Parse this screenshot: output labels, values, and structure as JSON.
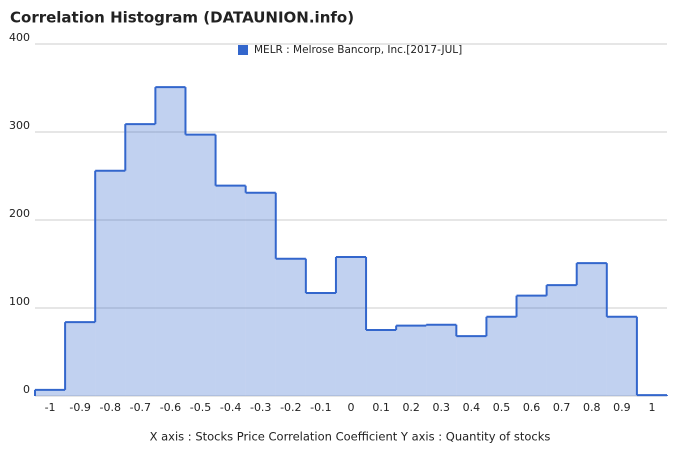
{
  "chart_data": {
    "type": "step-area",
    "title": "Correlation Histogram (DATAUNION.info)",
    "xlabel": "X axis : Stocks Price Correlation Coefficient  Y axis : Quantity of stocks",
    "x": [
      -1,
      -0.9,
      -0.8,
      -0.7,
      -0.6,
      -0.5,
      -0.4,
      -0.3,
      -0.2,
      -0.1,
      0,
      0.1,
      0.2,
      0.3,
      0.4,
      0.5,
      0.6,
      0.7,
      0.8,
      0.9,
      1
    ],
    "bin_width": 0.1,
    "series": [
      {
        "name": "MELR : Melrose Bancorp, Inc.[2017-JUL]",
        "color": "#3366cc",
        "values": [
          7,
          84,
          256,
          309,
          351,
          297,
          239,
          231,
          156,
          117,
          158,
          75,
          80,
          81,
          68,
          90,
          114,
          126,
          151,
          90,
          1
        ]
      }
    ],
    "xlim": [
      -1.05,
      1.05
    ],
    "xticks": [
      -1,
      -0.9,
      -0.8,
      -0.7,
      -0.6,
      -0.5,
      -0.4,
      -0.3,
      -0.2,
      -0.1,
      0,
      0.1,
      0.2,
      0.3,
      0.4,
      0.5,
      0.6,
      0.7,
      0.8,
      0.9,
      1
    ],
    "ylim": [
      0,
      400
    ],
    "yticks": [
      0,
      100,
      200,
      300,
      400
    ],
    "grid": true
  }
}
